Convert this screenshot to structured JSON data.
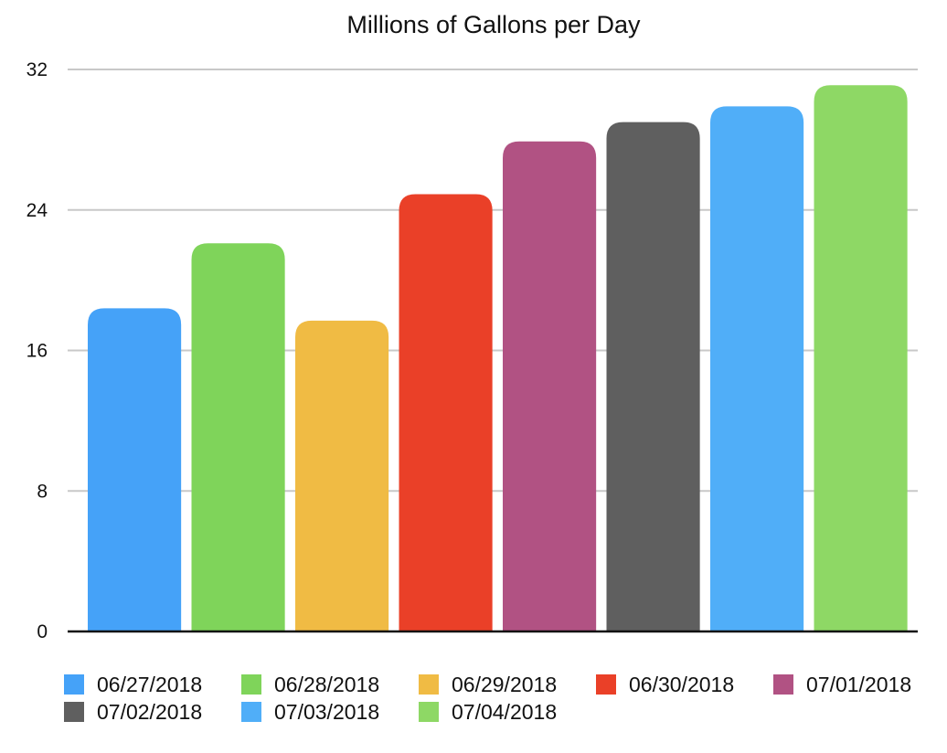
{
  "chart_data": {
    "type": "bar",
    "title": "Millions of Gallons per Day",
    "xlabel": "",
    "ylabel": "",
    "ylim": [
      0,
      32
    ],
    "yticks": [
      0,
      8,
      16,
      24,
      32
    ],
    "grid": true,
    "legend_position": "bottom",
    "categories": [
      "06/27/2018",
      "06/28/2018",
      "06/29/2018",
      "06/30/2018",
      "07/01/2018",
      "07/02/2018",
      "07/03/2018",
      "07/04/2018"
    ],
    "values": [
      18.4,
      22.1,
      17.7,
      24.9,
      27.9,
      29.0,
      29.9,
      31.1
    ],
    "colors": [
      "#45a2f8",
      "#7fd45a",
      "#f0bb44",
      "#ea4028",
      "#b15283",
      "#5f5f5f",
      "#50aef8",
      "#8ed865"
    ]
  }
}
